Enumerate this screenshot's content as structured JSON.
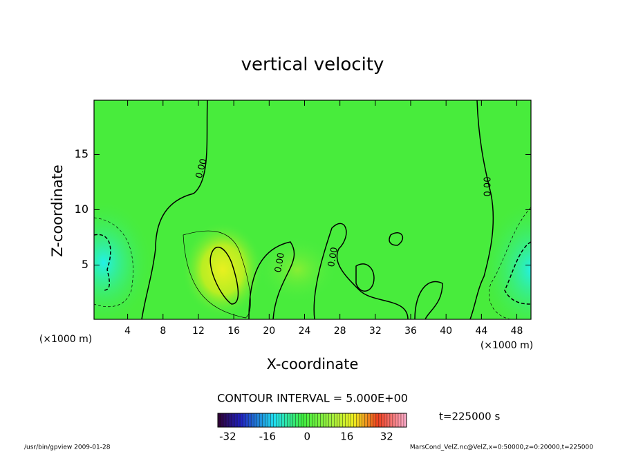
{
  "chart_data": {
    "type": "contour",
    "title": "vertical velocity",
    "xlabel": "X-coordinate",
    "ylabel": "Z-coordinate",
    "x_unit_labels": [
      "(×1000 m)",
      "(×1000 m)"
    ],
    "xlim": [
      0.2,
      49.6
    ],
    "xticks": [
      4,
      8,
      12,
      16,
      20,
      24,
      28,
      32,
      36,
      40,
      44,
      48
    ],
    "ylim": [
      0.1,
      19.9
    ],
    "yticks": [
      5,
      10,
      15
    ],
    "contour_labels": [
      "0.00",
      "0.00",
      "0.00",
      "0.00"
    ],
    "contour_interval": "CONTOUR INTERVAL = 5.000E+00",
    "time_label": "t=225000 s",
    "colorbar": {
      "clim": [
        -36,
        40
      ],
      "ticks": [
        -32,
        -16,
        0,
        16,
        32
      ]
    },
    "footer_left": "/usr/bin/gpview   2009-01-28",
    "footer_right": "MarsCond_VelZ.nc@VelZ,x=0:50000,z=0:20000,t=225000"
  }
}
